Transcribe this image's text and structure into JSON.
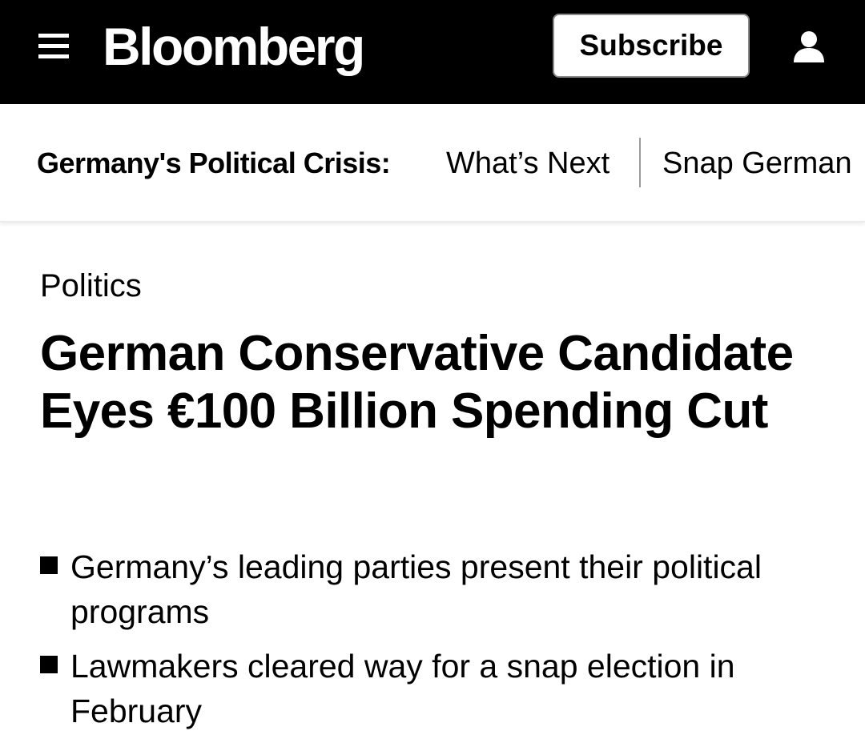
{
  "header": {
    "brand": "Bloomberg",
    "subscribe_label": "Subscribe",
    "menu_icon": "hamburger-menu-icon",
    "user_icon": "user-icon",
    "background_color": "#000000"
  },
  "subnav": {
    "title": "Germany's Political Crisis:",
    "links": [
      {
        "label": "What’s Next"
      },
      {
        "label": "Snap German"
      }
    ]
  },
  "article": {
    "section": "Politics",
    "headline": "German Conservative Candidate Eyes €100 Billion Spending Cut",
    "bullets": [
      "Germany’s leading parties present their political programs",
      "Lawmakers cleared way for a snap election in February"
    ]
  }
}
